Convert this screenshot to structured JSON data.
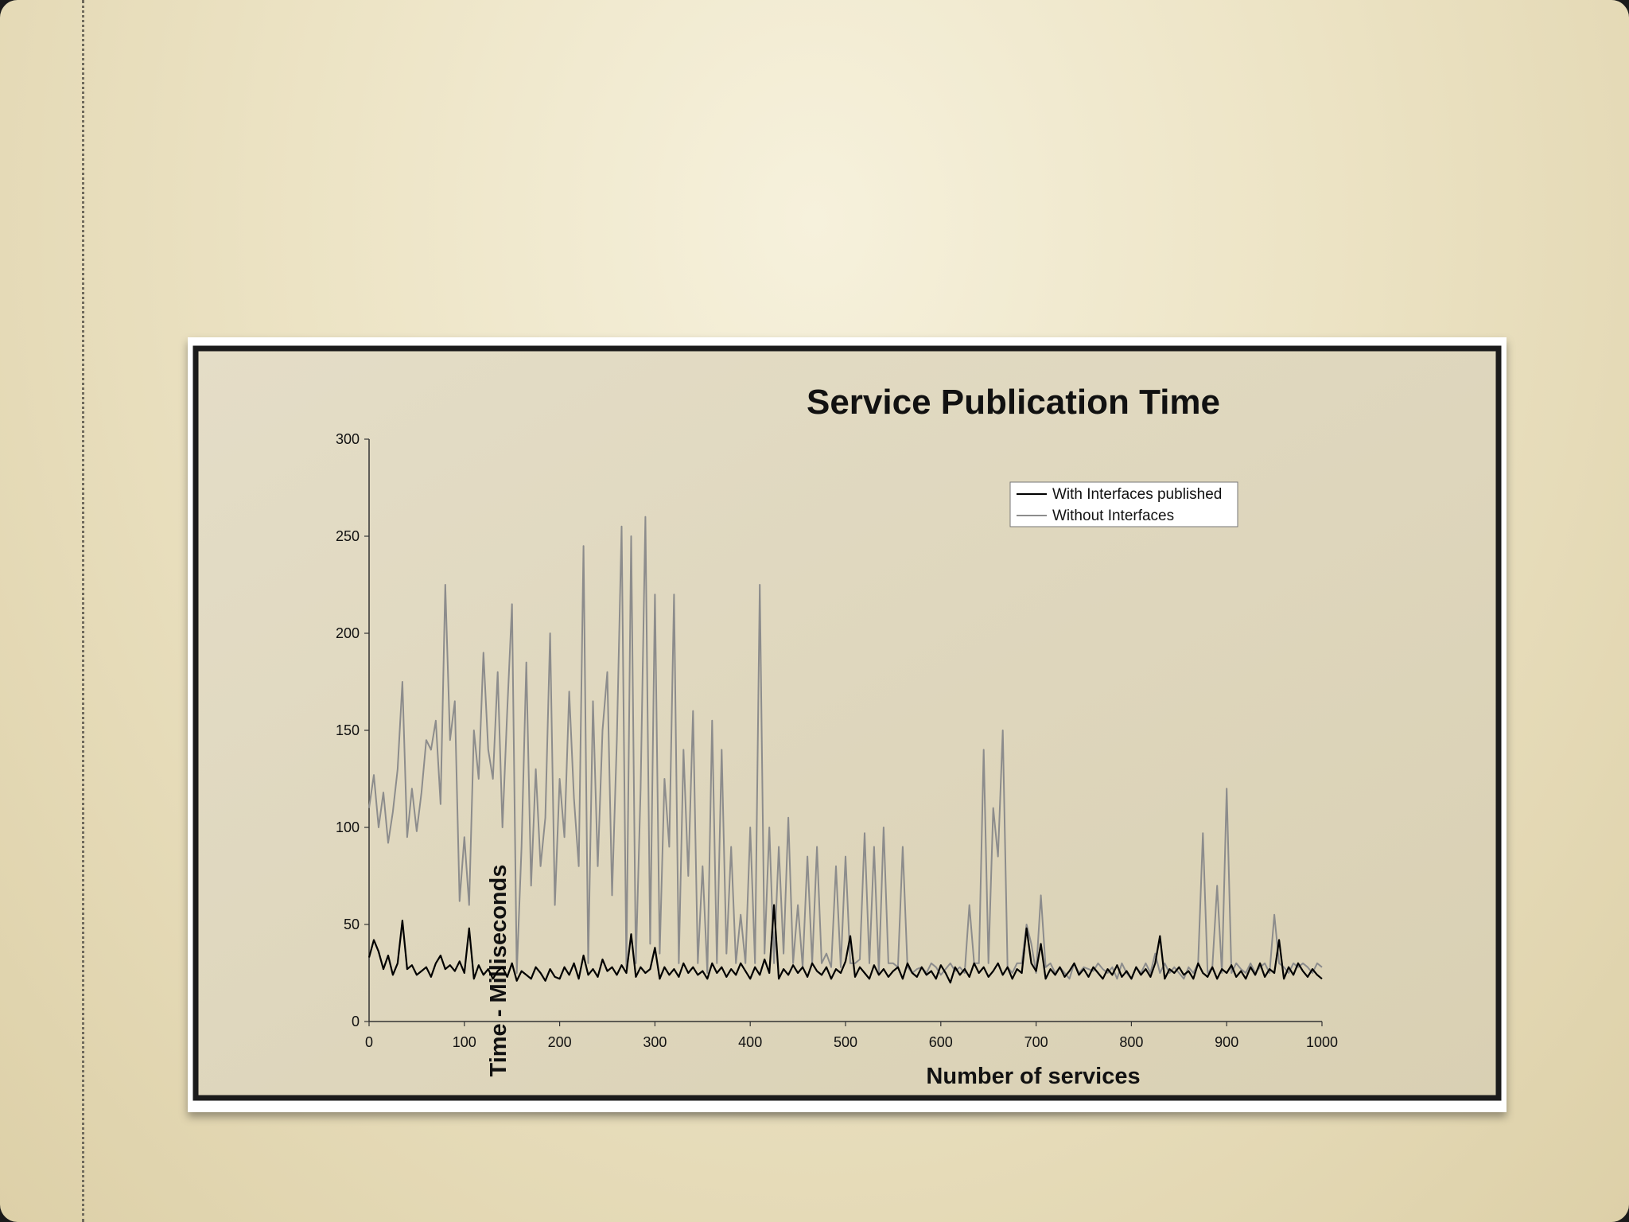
{
  "chart_data": {
    "type": "line",
    "title": "Service Publication Time",
    "xlabel": "Number of services",
    "ylabel": "Time - Milliseconds",
    "xlim": [
      0,
      1000
    ],
    "ylim": [
      0,
      300
    ],
    "xticks": [
      "0",
      "100",
      "200",
      "300",
      "400",
      "500",
      "600",
      "700",
      "800",
      "900",
      "1000"
    ],
    "yticks": [
      "0",
      "50",
      "100",
      "150",
      "200",
      "250",
      "300"
    ],
    "legend_position": "top-right",
    "grid": false,
    "series": [
      {
        "name": "With Interfaces published",
        "color": "#000000",
        "x": [
          0,
          5,
          10,
          15,
          20,
          25,
          30,
          35,
          40,
          45,
          50,
          55,
          60,
          65,
          70,
          75,
          80,
          85,
          90,
          95,
          100,
          105,
          110,
          115,
          120,
          125,
          130,
          135,
          140,
          145,
          150,
          155,
          160,
          165,
          170,
          175,
          180,
          185,
          190,
          195,
          200,
          205,
          210,
          215,
          220,
          225,
          230,
          235,
          240,
          245,
          250,
          255,
          260,
          265,
          270,
          275,
          280,
          285,
          290,
          295,
          300,
          305,
          310,
          315,
          320,
          325,
          330,
          335,
          340,
          345,
          350,
          355,
          360,
          365,
          370,
          375,
          380,
          385,
          390,
          395,
          400,
          405,
          410,
          415,
          420,
          425,
          430,
          435,
          440,
          445,
          450,
          455,
          460,
          465,
          470,
          475,
          480,
          485,
          490,
          495,
          500,
          505,
          510,
          515,
          520,
          525,
          530,
          535,
          540,
          545,
          550,
          555,
          560,
          565,
          570,
          575,
          580,
          585,
          590,
          595,
          600,
          605,
          610,
          615,
          620,
          625,
          630,
          635,
          640,
          645,
          650,
          655,
          660,
          665,
          670,
          675,
          680,
          685,
          690,
          695,
          700,
          705,
          710,
          715,
          720,
          725,
          730,
          735,
          740,
          745,
          750,
          755,
          760,
          765,
          770,
          775,
          780,
          785,
          790,
          795,
          800,
          805,
          810,
          815,
          820,
          825,
          830,
          835,
          840,
          845,
          850,
          855,
          860,
          865,
          870,
          875,
          880,
          885,
          890,
          895,
          900,
          905,
          910,
          915,
          920,
          925,
          930,
          935,
          940,
          945,
          950,
          955,
          960,
          965,
          970,
          975,
          980,
          985,
          990,
          995,
          1000
        ],
        "values": [
          33,
          42,
          36,
          27,
          34,
          24,
          30,
          52,
          27,
          29,
          24,
          26,
          28,
          23,
          30,
          34,
          27,
          29,
          26,
          31,
          25,
          48,
          22,
          29,
          24,
          27,
          22,
          26,
          28,
          23,
          30,
          21,
          26,
          24,
          22,
          28,
          25,
          21,
          27,
          23,
          22,
          28,
          24,
          30,
          22,
          34,
          24,
          27,
          23,
          32,
          26,
          28,
          24,
          29,
          25,
          45,
          23,
          28,
          25,
          27,
          38,
          22,
          28,
          24,
          27,
          23,
          30,
          25,
          28,
          24,
          26,
          22,
          30,
          25,
          28,
          23,
          27,
          24,
          30,
          26,
          22,
          28,
          24,
          32,
          25,
          60,
          22,
          27,
          24,
          29,
          25,
          28,
          23,
          30,
          26,
          24,
          28,
          22,
          27,
          25,
          31,
          44,
          23,
          28,
          25,
          22,
          29,
          24,
          27,
          23,
          26,
          28,
          22,
          30,
          25,
          23,
          28,
          24,
          26,
          22,
          29,
          25,
          20,
          28,
          24,
          27,
          23,
          30,
          25,
          28,
          23,
          26,
          30,
          24,
          28,
          22,
          27,
          25,
          48,
          30,
          26,
          40,
          22,
          27,
          24,
          28,
          23,
          26,
          30,
          24,
          27,
          23,
          28,
          25,
          22,
          27,
          24,
          29,
          23,
          26,
          22,
          28,
          24,
          27,
          23,
          30,
          44,
          22,
          27,
          25,
          28,
          24,
          26,
          22,
          30,
          25,
          23,
          28,
          22,
          27,
          25,
          29,
          23,
          26,
          22,
          28,
          24,
          30,
          23,
          27,
          25,
          42,
          22,
          28,
          24,
          30,
          26,
          23,
          27,
          24,
          22
        ]
      },
      {
        "name": "Without Interfaces",
        "color": "#8c8c8c",
        "x": [
          0,
          5,
          10,
          15,
          20,
          25,
          30,
          35,
          40,
          45,
          50,
          55,
          60,
          65,
          70,
          75,
          80,
          85,
          90,
          95,
          100,
          105,
          110,
          115,
          120,
          125,
          130,
          135,
          140,
          145,
          150,
          155,
          160,
          165,
          170,
          175,
          180,
          185,
          190,
          195,
          200,
          205,
          210,
          215,
          220,
          225,
          230,
          235,
          240,
          245,
          250,
          255,
          260,
          265,
          270,
          275,
          280,
          285,
          290,
          295,
          300,
          305,
          310,
          315,
          320,
          325,
          330,
          335,
          340,
          345,
          350,
          355,
          360,
          365,
          370,
          375,
          380,
          385,
          390,
          395,
          400,
          405,
          410,
          415,
          420,
          425,
          430,
          435,
          440,
          445,
          450,
          455,
          460,
          465,
          470,
          475,
          480,
          485,
          490,
          495,
          500,
          505,
          510,
          515,
          520,
          525,
          530,
          535,
          540,
          545,
          550,
          555,
          560,
          565,
          570,
          575,
          580,
          585,
          590,
          595,
          600,
          605,
          610,
          615,
          620,
          625,
          630,
          635,
          640,
          645,
          650,
          655,
          660,
          665,
          670,
          675,
          680,
          685,
          690,
          695,
          700,
          705,
          710,
          715,
          720,
          725,
          730,
          735,
          740,
          745,
          750,
          755,
          760,
          765,
          770,
          775,
          780,
          785,
          790,
          795,
          800,
          805,
          810,
          815,
          820,
          825,
          830,
          835,
          840,
          845,
          850,
          855,
          860,
          865,
          870,
          875,
          880,
          885,
          890,
          895,
          900,
          905,
          910,
          915,
          920,
          925,
          930,
          935,
          940,
          945,
          950,
          955,
          960,
          965,
          970,
          975,
          980,
          985,
          990,
          995,
          1000
        ],
        "values": [
          110,
          127,
          100,
          118,
          92,
          108,
          130,
          175,
          95,
          120,
          98,
          118,
          145,
          140,
          155,
          112,
          225,
          145,
          165,
          62,
          95,
          60,
          150,
          125,
          190,
          140,
          125,
          180,
          100,
          160,
          215,
          25,
          90,
          185,
          70,
          130,
          80,
          105,
          200,
          60,
          125,
          95,
          170,
          115,
          80,
          245,
          30,
          165,
          80,
          150,
          180,
          65,
          145,
          255,
          28,
          250,
          30,
          120,
          260,
          40,
          220,
          35,
          125,
          90,
          220,
          30,
          140,
          75,
          160,
          30,
          80,
          25,
          155,
          30,
          140,
          35,
          90,
          30,
          55,
          30,
          100,
          30,
          225,
          35,
          100,
          30,
          90,
          35,
          105,
          30,
          60,
          28,
          85,
          30,
          90,
          30,
          35,
          28,
          80,
          28,
          85,
          30,
          30,
          32,
          97,
          30,
          90,
          25,
          100,
          30,
          30,
          28,
          90,
          28,
          25,
          27,
          28,
          25,
          30,
          28,
          24,
          27,
          30,
          26,
          28,
          25,
          60,
          30,
          30,
          140,
          30,
          110,
          85,
          150,
          28,
          25,
          30,
          30,
          50,
          40,
          25,
          65,
          28,
          30,
          25,
          28,
          25,
          22,
          30,
          25,
          28,
          27,
          26,
          30,
          27,
          25,
          28,
          22,
          30,
          25,
          22,
          28,
          25,
          30,
          25,
          35,
          25,
          30,
          25,
          28,
          25,
          22,
          28,
          25,
          30,
          97,
          25,
          28,
          70,
          25,
          120,
          25,
          30,
          27,
          25,
          30,
          25,
          28,
          30,
          25,
          55,
          30,
          28,
          25,
          30,
          28,
          30,
          28,
          25,
          30,
          28
        ]
      }
    ]
  }
}
